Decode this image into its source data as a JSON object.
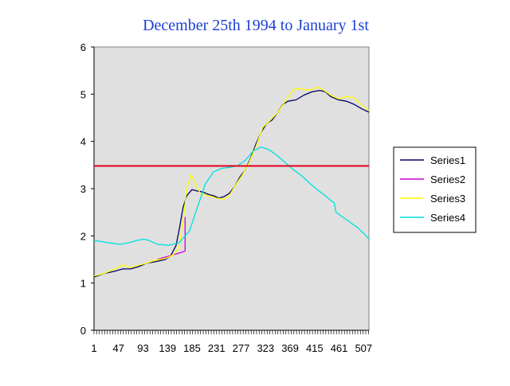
{
  "chart_data": {
    "type": "line",
    "title": "December 25th 1994 to January 1st",
    "xlabel": "",
    "ylabel": "",
    "xlim": [
      1,
      517
    ],
    "ylim": [
      0,
      6
    ],
    "x_tick_labels": [
      "1",
      "47",
      "93",
      "139",
      "185",
      "231",
      "277",
      "323",
      "369",
      "415",
      "461",
      "507"
    ],
    "y_tick_labels": [
      "0",
      "1",
      "2",
      "3",
      "4",
      "5",
      "6"
    ],
    "grid": false,
    "plot_background": "#e0e0e0",
    "legend_position": "right",
    "reference_line": {
      "y": 3.48,
      "color": "#e0001a"
    },
    "series": [
      {
        "name": "Series1",
        "color": "#000066",
        "points": [
          [
            1,
            1.13
          ],
          [
            20,
            1.2
          ],
          [
            40,
            1.25
          ],
          [
            55,
            1.3
          ],
          [
            70,
            1.3
          ],
          [
            85,
            1.35
          ],
          [
            100,
            1.42
          ],
          [
            115,
            1.45
          ],
          [
            135,
            1.5
          ],
          [
            145,
            1.58
          ],
          [
            155,
            1.8
          ],
          [
            162,
            2.2
          ],
          [
            168,
            2.6
          ],
          [
            175,
            2.85
          ],
          [
            185,
            2.98
          ],
          [
            195,
            2.95
          ],
          [
            205,
            2.93
          ],
          [
            215,
            2.88
          ],
          [
            225,
            2.85
          ],
          [
            235,
            2.8
          ],
          [
            245,
            2.83
          ],
          [
            255,
            2.9
          ],
          [
            265,
            3.05
          ],
          [
            275,
            3.25
          ],
          [
            285,
            3.4
          ],
          [
            295,
            3.65
          ],
          [
            305,
            3.95
          ],
          [
            315,
            4.2
          ],
          [
            325,
            4.38
          ],
          [
            335,
            4.45
          ],
          [
            345,
            4.6
          ],
          [
            355,
            4.78
          ],
          [
            365,
            4.85
          ],
          [
            380,
            4.88
          ],
          [
            395,
            4.98
          ],
          [
            410,
            5.05
          ],
          [
            425,
            5.08
          ],
          [
            435,
            5.05
          ],
          [
            445,
            4.95
          ],
          [
            460,
            4.88
          ],
          [
            475,
            4.85
          ],
          [
            490,
            4.78
          ],
          [
            505,
            4.68
          ],
          [
            517,
            4.62
          ]
        ]
      },
      {
        "name": "Series2",
        "color": "#d000d0",
        "points": [
          [
            120,
            1.5
          ],
          [
            135,
            1.55
          ],
          [
            150,
            1.6
          ],
          [
            165,
            1.65
          ],
          [
            172,
            1.68
          ],
          [
            172,
            2.4
          ]
        ]
      },
      {
        "name": "Series3",
        "color": "#ffff00",
        "points": [
          [
            1,
            1.15
          ],
          [
            20,
            1.2
          ],
          [
            40,
            1.3
          ],
          [
            55,
            1.38
          ],
          [
            70,
            1.33
          ],
          [
            85,
            1.38
          ],
          [
            100,
            1.42
          ],
          [
            115,
            1.48
          ],
          [
            135,
            1.52
          ],
          [
            150,
            1.6
          ],
          [
            160,
            1.75
          ],
          [
            168,
            2.3
          ],
          [
            175,
            3.0
          ],
          [
            183,
            3.3
          ],
          [
            190,
            3.15
          ],
          [
            200,
            2.9
          ],
          [
            215,
            2.85
          ],
          [
            230,
            2.8
          ],
          [
            245,
            2.78
          ],
          [
            255,
            2.85
          ],
          [
            265,
            3.05
          ],
          [
            280,
            3.3
          ],
          [
            292,
            3.55
          ],
          [
            305,
            3.9
          ],
          [
            318,
            4.3
          ],
          [
            330,
            4.43
          ],
          [
            345,
            4.6
          ],
          [
            360,
            4.85
          ],
          [
            375,
            5.1
          ],
          [
            390,
            5.12
          ],
          [
            405,
            5.08
          ],
          [
            420,
            5.15
          ],
          [
            430,
            5.1
          ],
          [
            445,
            4.98
          ],
          [
            460,
            4.9
          ],
          [
            475,
            4.95
          ],
          [
            490,
            4.92
          ],
          [
            505,
            4.75
          ],
          [
            517,
            4.65
          ]
        ]
      },
      {
        "name": "Series4",
        "color": "#00e0e0",
        "points": [
          [
            1,
            1.9
          ],
          [
            15,
            1.88
          ],
          [
            30,
            1.85
          ],
          [
            50,
            1.82
          ],
          [
            65,
            1.85
          ],
          [
            80,
            1.9
          ],
          [
            95,
            1.93
          ],
          [
            105,
            1.9
          ],
          [
            120,
            1.82
          ],
          [
            140,
            1.8
          ],
          [
            160,
            1.85
          ],
          [
            180,
            2.1
          ],
          [
            195,
            2.6
          ],
          [
            210,
            3.1
          ],
          [
            225,
            3.35
          ],
          [
            240,
            3.43
          ],
          [
            255,
            3.45
          ],
          [
            270,
            3.48
          ],
          [
            285,
            3.6
          ],
          [
            300,
            3.8
          ],
          [
            315,
            3.88
          ],
          [
            330,
            3.82
          ],
          [
            345,
            3.7
          ],
          [
            360,
            3.55
          ],
          [
            375,
            3.4
          ],
          [
            390,
            3.28
          ],
          [
            405,
            3.12
          ],
          [
            420,
            2.98
          ],
          [
            435,
            2.85
          ],
          [
            445,
            2.75
          ],
          [
            452,
            2.7
          ],
          [
            455,
            2.5
          ],
          [
            465,
            2.42
          ],
          [
            480,
            2.3
          ],
          [
            495,
            2.18
          ],
          [
            510,
            2.02
          ],
          [
            517,
            1.93
          ]
        ]
      }
    ]
  }
}
